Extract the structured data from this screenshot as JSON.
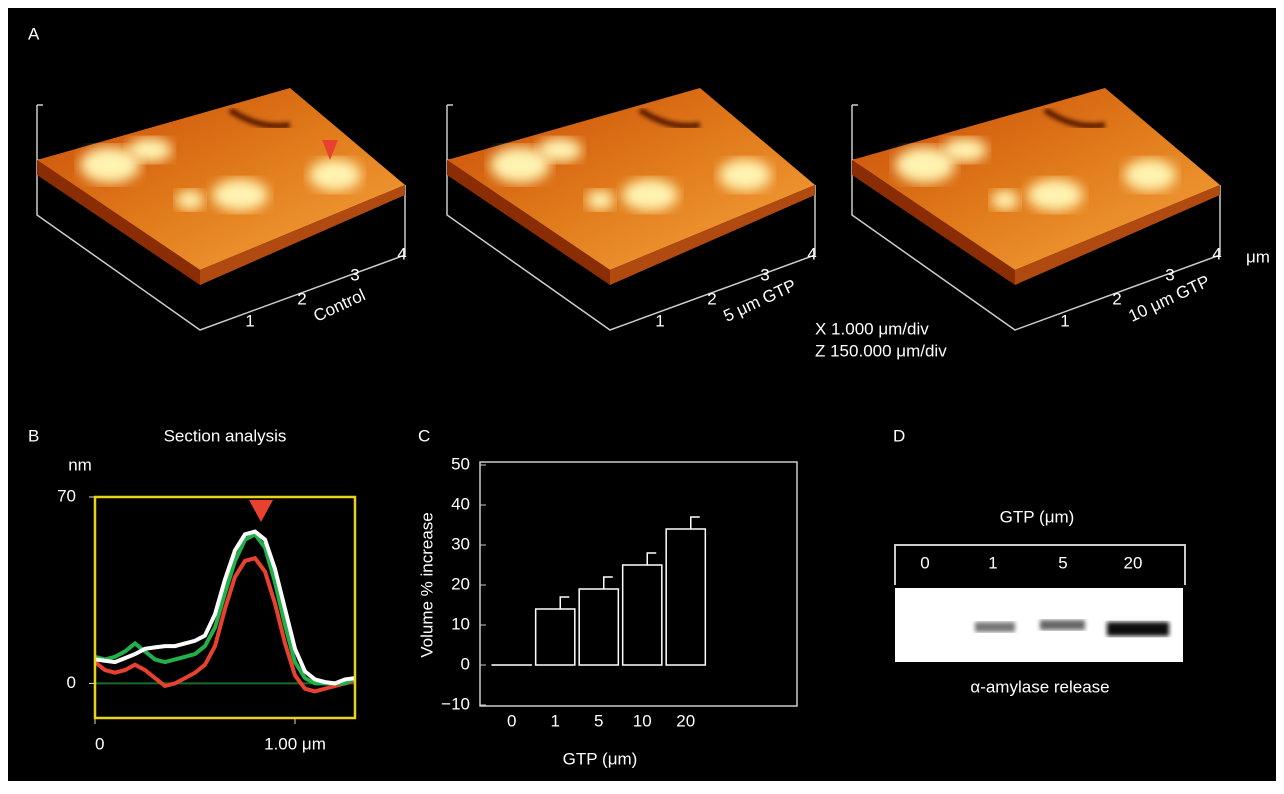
{
  "panel_a": {
    "label": "A",
    "surfaces": [
      {
        "axis_ticks": [
          "1",
          "2",
          "3",
          "4"
        ],
        "caption": "Control"
      },
      {
        "axis_ticks": [
          "1",
          "2",
          "3",
          "4"
        ],
        "caption": "5 μm GTP"
      },
      {
        "axis_ticks": [
          "1",
          "2",
          "3",
          "4"
        ],
        "caption": "10 μm GTP"
      }
    ],
    "unit": "μm",
    "scale": [
      "X 1.000 μm/div",
      "Z 150.000 μm/div"
    ]
  },
  "chart_data": [
    {
      "type": "line",
      "label": "B",
      "title": "Section analysis",
      "ylabel": "nm",
      "x": [
        0,
        0.05,
        0.1,
        0.15,
        0.2,
        0.25,
        0.3,
        0.35,
        0.4,
        0.45,
        0.5,
        0.55,
        0.6,
        0.65,
        0.7,
        0.75,
        0.8,
        0.85,
        0.9,
        0.95,
        1.0,
        1.05,
        1.1,
        1.15,
        1.2,
        1.25,
        1.3
      ],
      "series": [
        {
          "color": "#1a6b2a",
          "values": [
            0,
            0,
            0,
            0,
            0,
            0,
            0,
            0,
            0,
            0,
            0,
            0,
            0,
            0,
            0,
            0,
            0,
            0,
            0,
            0,
            0,
            0,
            0,
            0,
            0,
            0,
            0
          ]
        },
        {
          "color": "#e8412f",
          "values": [
            8,
            5,
            4,
            5,
            7,
            5,
            2,
            -1,
            0,
            2,
            4,
            7,
            14,
            28,
            40,
            46,
            47,
            42,
            30,
            15,
            3,
            -2,
            -3,
            -2,
            -1,
            0,
            1
          ]
        },
        {
          "color": "#22b04a",
          "values": [
            10,
            9,
            10,
            12,
            15,
            12,
            9,
            8,
            9,
            10,
            11,
            14,
            21,
            34,
            46,
            54,
            56,
            51,
            38,
            22,
            8,
            2,
            0,
            0,
            0,
            0,
            2
          ]
        },
        {
          "color": "#ffffff",
          "values": [
            9,
            8.5,
            8,
            9.5,
            11,
            13,
            13.5,
            14,
            14,
            15,
            16,
            18,
            26,
            39,
            50,
            56,
            57,
            54,
            43,
            28,
            13,
            4.5,
            1.5,
            0.5,
            0,
            1.5,
            2
          ]
        }
      ],
      "xlim": [
        0,
        1.3
      ],
      "xticks": [
        0,
        {
          "value": 1,
          "label": "1.00 μm"
        }
      ],
      "ylim": [
        -13,
        70
      ],
      "yticks": [
        0,
        70
      ]
    },
    {
      "type": "bar",
      "label": "C",
      "ylabel": "Volume % increase",
      "xlabel": "GTP (μm)",
      "categories": [
        "0",
        "1",
        "5",
        "10",
        "20"
      ],
      "values": [
        0,
        14,
        19,
        25,
        34
      ],
      "errors": [
        0,
        3,
        3,
        3,
        3
      ],
      "color": "#ffffff",
      "ylim": [
        -10,
        50
      ],
      "yticks": [
        {
          "value": -10,
          "label": "−10"
        },
        0,
        10,
        20,
        30,
        40,
        50
      ]
    }
  ],
  "panel_d": {
    "label": "D",
    "title": "GTP (μm)",
    "lanes": [
      "0",
      "1",
      "5",
      "20"
    ],
    "caption": "α-amylase release"
  }
}
